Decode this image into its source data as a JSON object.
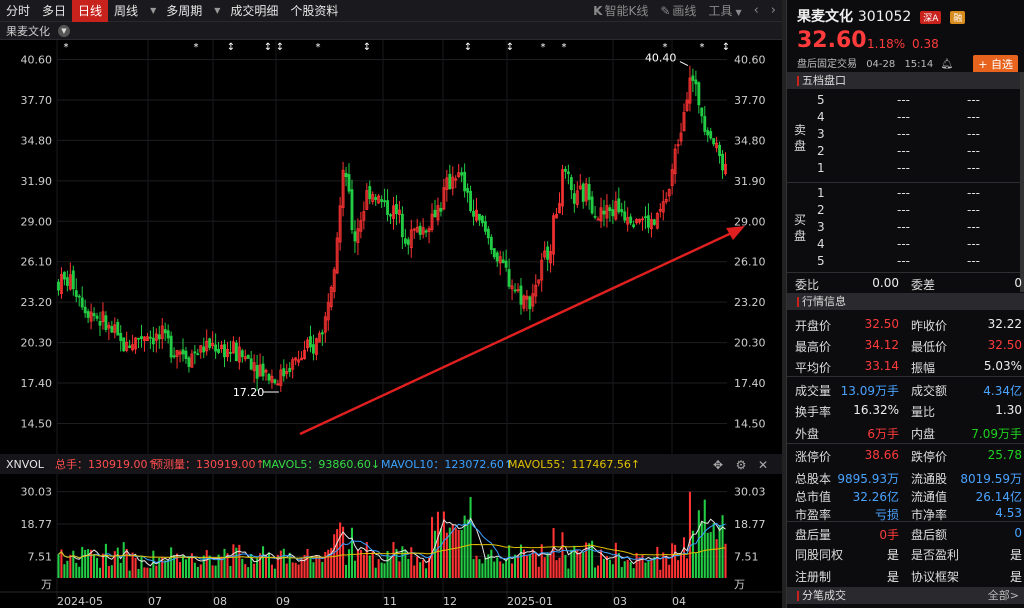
{
  "toolbar": {
    "tabs": [
      "分时",
      "多日",
      "日线",
      "周线",
      "多周期",
      "成交明细",
      "个股资料"
    ],
    "active_tab": "日线",
    "right_items": [
      "智能K线",
      "画线",
      "工具"
    ]
  },
  "subheader": {
    "stock_name": "果麦文化"
  },
  "chart_data": {
    "type": "candlestick",
    "price_axis": {
      "ticks": [
        "40.60",
        "37.70",
        "34.80",
        "31.90",
        "29.00",
        "26.10",
        "23.20",
        "20.30",
        "17.40",
        "14.50"
      ],
      "ylim": [
        12.6,
        42.0
      ]
    },
    "annotations": {
      "high": "40.40",
      "low": "17.20"
    },
    "x_labels": [
      "2024-05",
      "07",
      "08",
      "09",
      "11",
      "12",
      "2025-01",
      "03",
      "04"
    ],
    "volume_panel": {
      "indicator": "XNVOL",
      "total_label": "总手：130919.00↑",
      "forecast_label": "预测量：130919.00↑",
      "ma5_label": "MAVOL5：93860.60↓",
      "ma10_label": "MAVOL10：123072.60↑",
      "ma55_label": "MAVOL55：117467.56↑",
      "ticks": [
        "30.03",
        "18.77",
        "7.51"
      ],
      "unit": "万"
    }
  },
  "panel": {
    "name": "果麦文化",
    "code": "301052",
    "tag1": "深A",
    "tag2": "融",
    "price": "32.60",
    "pct": "1.18%",
    "chg": "0.38",
    "sub": "盘后固定交易",
    "date": "04-28",
    "time": "15:14",
    "add_label": "+ 自选",
    "orderbook_title": "五档盘口",
    "sell_label": "卖盘",
    "buy_label": "买盘",
    "levels": [
      "5",
      "4",
      "3",
      "2",
      "1"
    ],
    "buy_levels": [
      "1",
      "2",
      "3",
      "4",
      "5"
    ],
    "dash": "---",
    "webi_label": "委比",
    "webi_value": "0.00",
    "weicha_label": "委差",
    "weicha_value": "0",
    "quote_title": "行情信息",
    "rows": [
      {
        "l1": "开盘价",
        "v1": "32.50",
        "c1": "red",
        "l2": "昨收价",
        "v2": "32.22",
        "c2": "white"
      },
      {
        "l1": "最高价",
        "v1": "34.12",
        "c1": "red",
        "l2": "最低价",
        "v2": "32.50",
        "c2": "red"
      },
      {
        "l1": "平均价",
        "v1": "33.14",
        "c1": "red",
        "l2": "振幅",
        "v2": "5.03%",
        "c2": "white"
      },
      {
        "l1": "成交量",
        "v1": "13.09万手",
        "c1": "blue",
        "l2": "成交额",
        "v2": "4.34亿",
        "c2": "blue"
      },
      {
        "l1": "换手率",
        "v1": "16.32%",
        "c1": "white",
        "l2": "量比",
        "v2": "1.30",
        "c2": "white"
      },
      {
        "l1": "外盘",
        "v1": "6万手",
        "c1": "red",
        "l2": "内盘",
        "v2": "7.09万手",
        "c2": "green"
      },
      {
        "l1": "涨停价",
        "v1": "38.66",
        "c1": "red",
        "l2": "跌停价",
        "v2": "25.78",
        "c2": "green"
      },
      {
        "l1": "总股本",
        "v1": "9895.93万",
        "c1": "blue",
        "l2": "流通股",
        "v2": "8019.59万",
        "c2": "blue"
      },
      {
        "l1": "总市值",
        "v1": "32.26亿",
        "c1": "blue",
        "l2": "流通值",
        "v2": "26.14亿",
        "c2": "blue"
      },
      {
        "l1": "市盈率",
        "v1": "亏损",
        "c1": "blue",
        "l2": "市净率",
        "v2": "4.53",
        "c2": "blue"
      },
      {
        "l1": "盘后量",
        "v1": "0手",
        "c1": "red",
        "l2": "盘后额",
        "v2": "0",
        "c2": "blue"
      },
      {
        "l1": "同股同权",
        "v1": "是",
        "c1": "white",
        "l2": "是否盈利",
        "v2": "是",
        "c2": "white"
      },
      {
        "l1": "注册制",
        "v1": "是",
        "c1": "white",
        "l2": "协议框架",
        "v2": "是",
        "c2": "white"
      }
    ],
    "trades_title": "分笔成交",
    "trades_more": "全部>"
  },
  "colors": {
    "up": "#ff3333",
    "down": "#22cc44",
    "accent": "#c8221d",
    "ma5": "#e6e6e6",
    "ma10": "#e0c000",
    "ma55": "#3aa0ff"
  }
}
